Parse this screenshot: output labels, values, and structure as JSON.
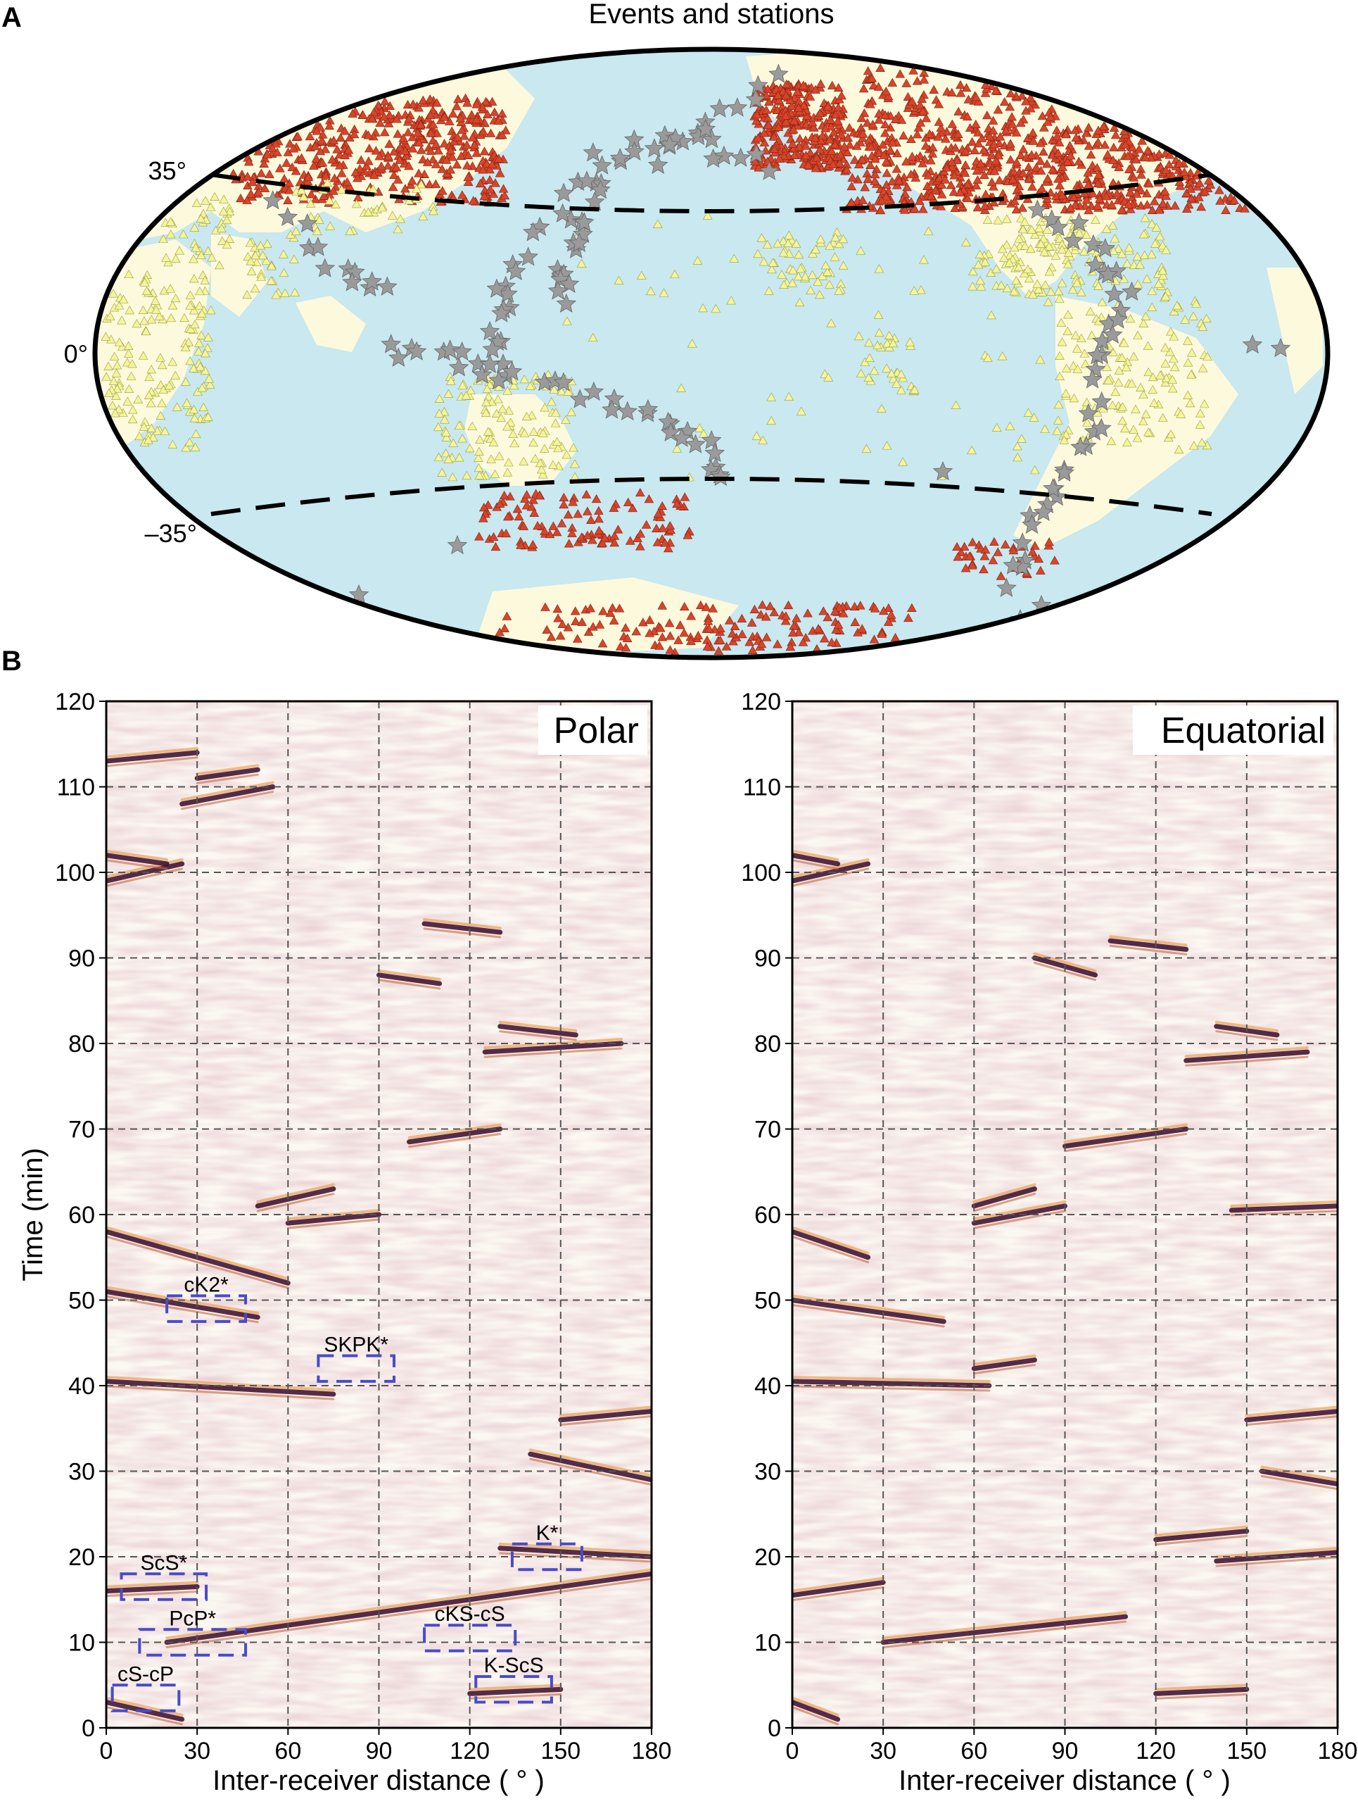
{
  "panels": {
    "A": {
      "letter": "A",
      "title": "Events and stations",
      "lat_labels": [
        "35°",
        "0°",
        "–35°"
      ],
      "colors": {
        "ocean": "#c9e8ef",
        "land": "#fdf9dd",
        "polar_station": "#d9442a",
        "equatorial_station": "#f4f49a",
        "event": "#9a9a9a",
        "boundary_line": "#000000"
      },
      "marker_types": {
        "polar_station": "triangle",
        "equatorial_station": "triangle",
        "event": "star"
      },
      "boundary_latitudes": [
        35,
        -35
      ]
    },
    "B": {
      "letter": "B"
    }
  },
  "chart_data": [
    {
      "type": "heatmap",
      "title": "Polar",
      "xlabel": "Inter-receiver distance ( ° )",
      "ylabel": "Time (min)",
      "xlim": [
        0,
        180
      ],
      "ylim": [
        0,
        120
      ],
      "xticks": [
        0,
        30,
        60,
        90,
        120,
        150,
        180
      ],
      "yticks": [
        0,
        10,
        20,
        30,
        40,
        50,
        60,
        70,
        80,
        90,
        100,
        110,
        120
      ],
      "grid": true,
      "colormap": [
        "#3a0a2a",
        "#ffffff",
        "#e08a3c"
      ],
      "features": [
        {
          "x0": 0,
          "y0": 58,
          "x1": 60,
          "y1": 52
        },
        {
          "x0": 0,
          "y0": 51,
          "x1": 50,
          "y1": 48
        },
        {
          "x0": 0,
          "y0": 40.5,
          "x1": 75,
          "y1": 39
        },
        {
          "x0": 20,
          "y0": 10,
          "x1": 180,
          "y1": 18
        },
        {
          "x0": 0,
          "y0": 16,
          "x1": 30,
          "y1": 16.5
        },
        {
          "x0": 0,
          "y0": 3,
          "x1": 25,
          "y1": 1
        },
        {
          "x0": 60,
          "y0": 59,
          "x1": 90,
          "y1": 60
        },
        {
          "x0": 50,
          "y0": 61,
          "x1": 75,
          "y1": 63
        },
        {
          "x0": 100,
          "y0": 68.5,
          "x1": 130,
          "y1": 70
        },
        {
          "x0": 130,
          "y0": 82,
          "x1": 155,
          "y1": 81
        },
        {
          "x0": 125,
          "y0": 79,
          "x1": 170,
          "y1": 80
        },
        {
          "x0": 130,
          "y0": 21,
          "x1": 180,
          "y1": 20
        },
        {
          "x0": 140,
          "y0": 32,
          "x1": 180,
          "y1": 29
        },
        {
          "x0": 150,
          "y0": 36,
          "x1": 180,
          "y1": 37
        },
        {
          "x0": 120,
          "y0": 4,
          "x1": 150,
          "y1": 4.5
        },
        {
          "x0": 105,
          "y0": 94,
          "x1": 130,
          "y1": 93
        },
        {
          "x0": 90,
          "y0": 88,
          "x1": 110,
          "y1": 87
        },
        {
          "x0": 25,
          "y0": 108,
          "x1": 55,
          "y1": 110
        },
        {
          "x0": 0,
          "y0": 99,
          "x1": 25,
          "y1": 101
        },
        {
          "x0": 0,
          "y0": 102,
          "x1": 20,
          "y1": 101
        },
        {
          "x0": 30,
          "y0": 111,
          "x1": 50,
          "y1": 112
        },
        {
          "x0": 0,
          "y0": 113,
          "x1": 30,
          "y1": 114
        }
      ],
      "annotations": [
        {
          "label": "cK2*",
          "x0": 20,
          "x1": 46,
          "y0": 47.5,
          "y1": 50.5
        },
        {
          "label": "SKPK*",
          "x0": 70,
          "x1": 95,
          "y0": 40.5,
          "y1": 43.5
        },
        {
          "label": "ScS*",
          "x0": 5,
          "x1": 33,
          "y0": 15,
          "y1": 18
        },
        {
          "label": "PcP*",
          "x0": 11,
          "x1": 46,
          "y0": 8.5,
          "y1": 11.5
        },
        {
          "label": "cS-cP",
          "x0": 2,
          "x1": 24,
          "y0": 2,
          "y1": 5
        },
        {
          "label": "cKS-cS",
          "x0": 105,
          "x1": 135,
          "y0": 9,
          "y1": 12
        },
        {
          "label": "K-ScS",
          "x0": 122,
          "x1": 147,
          "y0": 3,
          "y1": 6
        },
        {
          "label": "K*",
          "x0": 134,
          "x1": 157,
          "y0": 18.5,
          "y1": 21.5
        }
      ]
    },
    {
      "type": "heatmap",
      "title": "Equatorial",
      "xlabel": "Inter-receiver distance ( ° )",
      "ylabel": "",
      "xlim": [
        0,
        180
      ],
      "ylim": [
        0,
        120
      ],
      "xticks": [
        0,
        30,
        60,
        90,
        120,
        150,
        180
      ],
      "yticks": [
        0,
        10,
        20,
        30,
        40,
        50,
        60,
        70,
        80,
        90,
        100,
        110,
        120
      ],
      "grid": true,
      "colormap": [
        "#3a0a2a",
        "#ffffff",
        "#e08a3c"
      ],
      "features": [
        {
          "x0": 0,
          "y0": 58,
          "x1": 25,
          "y1": 55
        },
        {
          "x0": 0,
          "y0": 50,
          "x1": 50,
          "y1": 47.5
        },
        {
          "x0": 0,
          "y0": 40.5,
          "x1": 65,
          "y1": 40
        },
        {
          "x0": 30,
          "y0": 10,
          "x1": 110,
          "y1": 13
        },
        {
          "x0": 0,
          "y0": 15.5,
          "x1": 30,
          "y1": 17
        },
        {
          "x0": 0,
          "y0": 3,
          "x1": 15,
          "y1": 1
        },
        {
          "x0": 60,
          "y0": 59,
          "x1": 90,
          "y1": 61
        },
        {
          "x0": 60,
          "y0": 61,
          "x1": 80,
          "y1": 63
        },
        {
          "x0": 90,
          "y0": 68,
          "x1": 130,
          "y1": 70
        },
        {
          "x0": 140,
          "y0": 82,
          "x1": 160,
          "y1": 81
        },
        {
          "x0": 130,
          "y0": 78,
          "x1": 170,
          "y1": 79
        },
        {
          "x0": 140,
          "y0": 19.5,
          "x1": 180,
          "y1": 20.5
        },
        {
          "x0": 155,
          "y0": 30,
          "x1": 180,
          "y1": 28.5
        },
        {
          "x0": 150,
          "y0": 36,
          "x1": 180,
          "y1": 37
        },
        {
          "x0": 120,
          "y0": 4,
          "x1": 150,
          "y1": 4.5
        },
        {
          "x0": 105,
          "y0": 92,
          "x1": 130,
          "y1": 91
        },
        {
          "x0": 80,
          "y0": 90,
          "x1": 100,
          "y1": 88
        },
        {
          "x0": 60,
          "y0": 42,
          "x1": 80,
          "y1": 43
        },
        {
          "x0": 0,
          "y0": 99,
          "x1": 25,
          "y1": 101
        },
        {
          "x0": 0,
          "y0": 102,
          "x1": 15,
          "y1": 101
        },
        {
          "x0": 145,
          "y0": 60.5,
          "x1": 180,
          "y1": 61
        },
        {
          "x0": 120,
          "y0": 22,
          "x1": 150,
          "y1": 23
        }
      ],
      "annotations": []
    }
  ]
}
